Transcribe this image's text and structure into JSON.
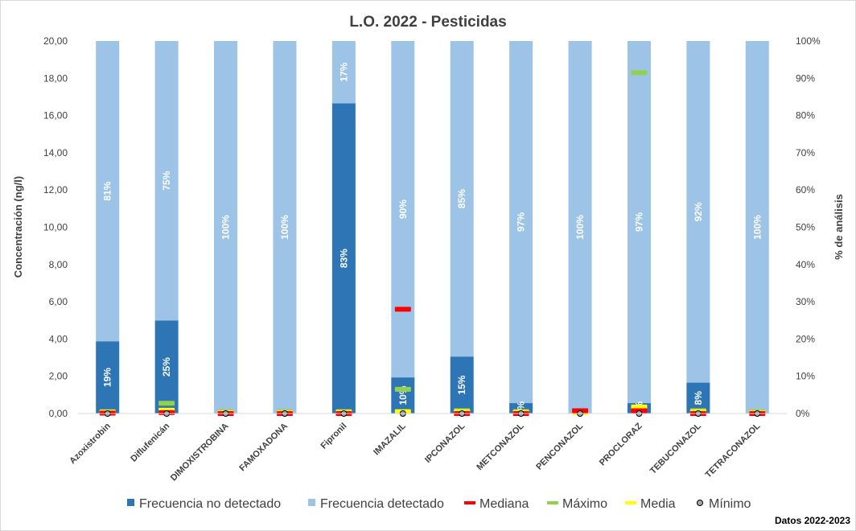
{
  "chart_data": {
    "type": "bar",
    "title": "L.O. 2022 - Pesticidas",
    "ylabel": "Concentración (ng/l)",
    "y2label": "% de análisis",
    "ylim": [
      0,
      20
    ],
    "y2lim": [
      0,
      100
    ],
    "yticks": [
      "0,00",
      "2,00",
      "4,00",
      "6,00",
      "8,00",
      "10,00",
      "12,00",
      "14,00",
      "16,00",
      "18,00",
      "20,00"
    ],
    "y2ticks": [
      "0%",
      "10%",
      "20%",
      "30%",
      "40%",
      "50%",
      "60%",
      "70%",
      "80%",
      "90%",
      "100%"
    ],
    "categories": [
      "Azoxistrobin",
      "Diflufenicán",
      "DIMOXISTROBINA",
      "FAMOXADONA",
      "Fipronil",
      "IMAZALIL",
      "IPCONAZOL",
      "METCONAZOL",
      "PENCONAZOL",
      "PROCLORAZ",
      "TEBUCONAZOL",
      "TETRACONAZOL"
    ],
    "series": [
      {
        "name": "Frecuencia no detectado",
        "axis": "right",
        "color": "#2e75b6",
        "values": [
          19.4,
          25,
          0,
          0,
          83.3,
          9.7,
          15.3,
          2.8,
          0,
          2.8,
          8.3,
          0
        ],
        "labels": [
          "19%",
          "25%",
          "",
          "",
          "83%",
          "10%",
          "15%",
          "3%",
          "",
          "3%",
          "8%",
          ""
        ]
      },
      {
        "name": "Frecuencia detectado",
        "axis": "right",
        "color": "#9dc3e6",
        "values": [
          80.6,
          75,
          100,
          100,
          16.7,
          90.3,
          84.7,
          97.2,
          100,
          97.2,
          91.7,
          100
        ],
        "labels": [
          "81%",
          "75%",
          "100%",
          "100%",
          "17%",
          "90%",
          "85%",
          "97%",
          "100%",
          "97%",
          "92%",
          "100%"
        ]
      },
      {
        "name": "Mediana",
        "axis": "left",
        "color": "#ff0000",
        "values": [
          0.02,
          0.05,
          0,
          0,
          0,
          5.6,
          0,
          0,
          0.15,
          0.15,
          0,
          0
        ]
      },
      {
        "name": "Máximo",
        "axis": "left",
        "color": "#92d050",
        "values": [
          0.1,
          0.55,
          0.1,
          0.1,
          0.1,
          1.3,
          0.15,
          0.1,
          0.1,
          18.3,
          0.15,
          0.1
        ]
      },
      {
        "name": "Media",
        "axis": "left",
        "color": "#ffff00",
        "values": [
          0.07,
          0.18,
          0.05,
          0.05,
          0.07,
          0.1,
          0.1,
          0.07,
          0.05,
          0.35,
          0.1,
          0.05
        ]
      },
      {
        "name": "Mínimo",
        "axis": "left",
        "color": "#a6a6a6",
        "values": [
          0,
          0,
          0,
          0,
          0,
          0,
          0,
          0,
          0,
          0,
          0,
          0
        ]
      }
    ],
    "legend_position": "bottom",
    "grid": false
  },
  "footer": "Datos 2022-2023"
}
